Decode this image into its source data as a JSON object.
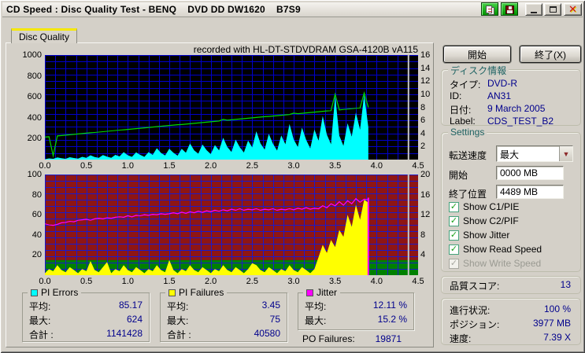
{
  "window": {
    "title": "CD Speed : Disc Quality Test - BENQ    DVD DD DW1620    B7S9",
    "caption_buttons": {
      "copy": "copy-report",
      "save": "save-report",
      "minimize": "minimize",
      "maximize": "maximize",
      "close": "close"
    }
  },
  "tab": {
    "label": "Disc Quality"
  },
  "chart_annotation": "recorded with HL-DT-STDVDRAM GSA-4120B vA115",
  "colors": {
    "window_bg": "#d4d0c8",
    "value_text": "#00008c",
    "group_title": "#1f6363",
    "pie": "#00ffff",
    "pif": "#ffff00",
    "jitter": "#ff00ff",
    "speed": "#00d800",
    "chart1_bg": "#000000",
    "chart2_bg": "#8e1515",
    "good_band": "#008000",
    "grid": "#0000cc"
  },
  "chart_data": [
    {
      "type": "area+line",
      "title": "PI Errors / Read Speed",
      "bg": "#000000",
      "grid_color": "#0000cc",
      "y_divisions": 16,
      "x_axis": {
        "min": 0,
        "max": 4.5,
        "unit": "GB",
        "ticks": [
          0,
          0.5,
          1,
          1.5,
          2,
          2.5,
          3,
          3.5,
          4,
          4.5
        ],
        "tick_labels": [
          "0.0",
          "0.5",
          "1.0",
          "1.5",
          "2.0",
          "2.5",
          "3.0",
          "3.5",
          "4.0",
          "4.5"
        ],
        "minor_divisions": 36
      },
      "y_left": {
        "max": 1000,
        "ticks": [
          200,
          400,
          600,
          800,
          1000
        ],
        "series": "PI Errors"
      },
      "y_right": {
        "max": 16,
        "ticks": [
          2,
          4,
          6,
          8,
          10,
          12,
          14,
          16
        ],
        "series": "Read Speed (X)"
      },
      "marker": {
        "x": 4.384,
        "color": "#c8c8c8"
      },
      "series": [
        {
          "name": "PI Errors",
          "type": "area",
          "axis": "left",
          "color": "#00ffff",
          "x_start": 0,
          "x_step": 0.05,
          "values": [
            4,
            12,
            8,
            20,
            13,
            8,
            23,
            15,
            9,
            26,
            17,
            42,
            25,
            16,
            43,
            28,
            16,
            46,
            30,
            71,
            42,
            27,
            70,
            45,
            26,
            71,
            46,
            109,
            63,
            40,
            104,
            65,
            38,
            103,
            66,
            155,
            89,
            56,
            145,
            90,
            52,
            140,
            89,
            208,
            120,
            74,
            192,
            119,
            68,
            183,
            116,
            270,
            155,
            96,
            246,
            152,
            87,
            232,
            147,
            340,
            194,
            120,
            307,
            189,
            108,
            287,
            181,
            418,
            238,
            146,
            610,
            230,
            131,
            348,
            219,
            450,
            286,
            624,
            310
          ]
        },
        {
          "name": "Read Speed",
          "type": "line",
          "axis": "right",
          "color": "#00d800",
          "x_start": 0,
          "x_step": 0.05,
          "values": [
            3.45,
            3.51,
            0.6,
            3.63,
            3.68,
            3.74,
            3.8,
            3.86,
            3.92,
            3.98,
            4.04,
            4.1,
            4.15,
            4.21,
            4.27,
            4.33,
            4.39,
            4.45,
            4.51,
            4.56,
            4.62,
            4.68,
            4.74,
            4.8,
            4.86,
            4.92,
            4.97,
            5.03,
            5.09,
            5.15,
            5.21,
            5.27,
            5.33,
            5.38,
            5.44,
            5.5,
            5.56,
            5.62,
            5.68,
            5.74,
            5.79,
            5.85,
            5.91,
            6.15,
            6.03,
            6.09,
            6.15,
            6.2,
            6.26,
            6.32,
            6.38,
            6.44,
            6.5,
            6.56,
            6.61,
            6.67,
            6.73,
            6.79,
            6.85,
            6.91,
            7.1,
            7.03,
            7.08,
            7.14,
            7.2,
            7.26,
            7.32,
            7.38,
            7.44,
            7.49,
            10.0,
            7.61,
            7.67,
            7.73,
            7.79,
            7.85,
            7.91,
            10.2,
            8.0
          ]
        }
      ]
    },
    {
      "type": "area+line",
      "title": "PI Failures / Jitter",
      "bg": "#8e1515",
      "grid_color": "#1a1acc",
      "y_divisions": 16,
      "band": {
        "from": 0,
        "to": 15,
        "color": "#008000"
      },
      "x_axis": {
        "min": 0,
        "max": 4.5,
        "unit": "GB",
        "ticks": [
          0,
          0.5,
          1,
          1.5,
          2,
          2.5,
          3,
          3.5,
          4,
          4.5
        ],
        "tick_labels": [
          "0.0",
          "0.5",
          "1.0",
          "1.5",
          "2.0",
          "2.5",
          "3.0",
          "3.5",
          "4.0",
          "4.5"
        ],
        "minor_divisions": 36
      },
      "y_left": {
        "max": 100,
        "ticks": [
          20,
          40,
          60,
          80,
          100
        ],
        "series": "PI Failures"
      },
      "y_right": {
        "max": 20,
        "ticks": [
          4,
          8,
          12,
          16,
          20
        ],
        "series": "Jitter (%)"
      },
      "marker": {
        "x": 4.384,
        "color": "#c8c8c8"
      },
      "end_bar": {
        "x": 3.9,
        "to": 77,
        "color": "#ff00ff"
      },
      "series": [
        {
          "name": "PI Failures",
          "type": "area",
          "axis": "left",
          "color": "#ffff00",
          "x_start": 0,
          "x_step": 0.05,
          "values": [
            2,
            6,
            4,
            10,
            5,
            3,
            8,
            5,
            2,
            6,
            4,
            14,
            5,
            3,
            8,
            13,
            2,
            6,
            4,
            10,
            5,
            3,
            8,
            5,
            2,
            6,
            4,
            10,
            5,
            3,
            15,
            5,
            2,
            6,
            4,
            10,
            5,
            3,
            8,
            5,
            2,
            6,
            4,
            10,
            5,
            3,
            8,
            5,
            2,
            6,
            12,
            10,
            5,
            3,
            8,
            5,
            2,
            6,
            4,
            10,
            5,
            3,
            8,
            5,
            2,
            6,
            18,
            30,
            22,
            35,
            28,
            45,
            38,
            60,
            48,
            70,
            55,
            75,
            72
          ]
        },
        {
          "name": "Jitter",
          "type": "line",
          "axis": "right",
          "color": "#ff00ff",
          "x_start": 0,
          "x_step": 0.05,
          "values": [
            10.2,
            10.0,
            9.9,
            10.1,
            10.4,
            10.5,
            10.7,
            10.6,
            10.9,
            11.0,
            11.1,
            10.9,
            11.2,
            11.3,
            11.2,
            11.4,
            11.3,
            11.5,
            11.6,
            11.5,
            11.8,
            11.6,
            11.9,
            11.8,
            12.0,
            11.9,
            12.1,
            12.0,
            12.2,
            12.1,
            12.2,
            12.4,
            12.2,
            12.5,
            12.3,
            12.6,
            12.4,
            12.7,
            12.5,
            12.8,
            12.6,
            12.9,
            12.7,
            13.0,
            12.8,
            13.1,
            12.9,
            13.2,
            12.9,
            13.1,
            13.0,
            13.2,
            12.9,
            13.1,
            13.0,
            13.2,
            12.9,
            13.1,
            13.0,
            13.2,
            13.0,
            13.3,
            13.1,
            13.4,
            13.1,
            13.3,
            13.2,
            13.8,
            13.4,
            14.2,
            13.8,
            14.6,
            13.9,
            14.8,
            14.2,
            15.2,
            14.5,
            15.1,
            15.0
          ]
        }
      ]
    }
  ],
  "legend_boxes": [
    {
      "title": "PI Errors",
      "swatch": "#00ffff",
      "rows": [
        {
          "label": "平均:",
          "value": "85.17"
        },
        {
          "label": "最大:",
          "value": "624"
        },
        {
          "label": "合計 :",
          "value": "1141428"
        }
      ]
    },
    {
      "title": "PI Failures",
      "swatch": "#ffff00",
      "rows": [
        {
          "label": "平均:",
          "value": "3.45"
        },
        {
          "label": "最大:",
          "value": "75"
        },
        {
          "label": "合計 :",
          "value": "40580"
        }
      ]
    },
    {
      "title": "Jitter",
      "swatch": "#ff00ff",
      "rows": [
        {
          "label": "平均:",
          "value": "12.11 %"
        },
        {
          "label": "最大:",
          "value": "15.2 %"
        }
      ]
    }
  ],
  "po_failures": {
    "label": "PO Failures:",
    "value": "19871"
  },
  "panel": {
    "start_button": "開始",
    "exit_button": "終了(X)",
    "disc_info": {
      "title": "ディスク情報",
      "rows": [
        {
          "label": "タイプ:",
          "value": "DVD-R"
        },
        {
          "label": "ID:",
          "value": "AN31"
        },
        {
          "label": "日付:",
          "value": "9 March 2005"
        },
        {
          "label": "Label:",
          "value": "CDS_TEST_B2"
        }
      ]
    },
    "settings": {
      "title": "Settings",
      "speed_label": "転送速度",
      "speed_value": "最大",
      "start_label": "開始",
      "start_value": "0000 MB",
      "end_label": "終了位置",
      "end_value": "4489 MB",
      "checkboxes": [
        {
          "label": "Show C1/PIE",
          "checked": true,
          "enabled": true
        },
        {
          "label": "Show C2/PIF",
          "checked": true,
          "enabled": true
        },
        {
          "label": "Show Jitter",
          "checked": true,
          "enabled": true
        },
        {
          "label": "Show Read Speed",
          "checked": true,
          "enabled": true
        },
        {
          "label": "Show Write Speed",
          "checked": true,
          "enabled": false
        }
      ]
    },
    "quality": {
      "label": "品質スコア:",
      "value": "13"
    },
    "progress": {
      "rows": [
        {
          "label": "進行状況:",
          "value": "100 %"
        },
        {
          "label": "ポジション:",
          "value": "3977 MB"
        },
        {
          "label": "速度:",
          "value": "7.39 X"
        }
      ]
    }
  }
}
